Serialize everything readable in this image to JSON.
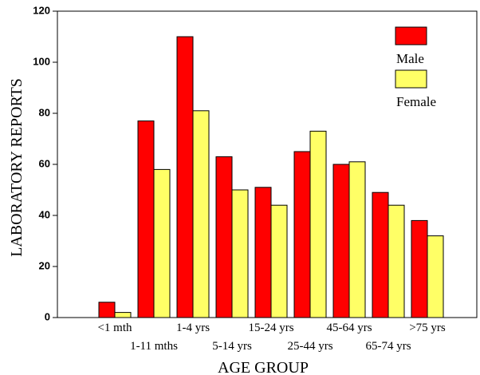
{
  "chart_data": {
    "type": "bar",
    "xlabel": "AGE GROUP",
    "ylabel": "LABORATORY REPORTS",
    "categories": [
      "<1 mth",
      "1-11 mths",
      "1-4 yrs",
      "5-14 yrs",
      "15-24 yrs",
      "25-44 yrs",
      "45-64 yrs",
      "65-74 yrs",
      ">75 yrs"
    ],
    "series": [
      {
        "name": "Male",
        "color": "#ff0000",
        "values": [
          6,
          77,
          110,
          63,
          51,
          65,
          60,
          49,
          38
        ]
      },
      {
        "name": "Female",
        "color": "#ffff66",
        "values": [
          2,
          58,
          81,
          50,
          44,
          73,
          61,
          44,
          32
        ]
      }
    ],
    "ylim": [
      0,
      120
    ],
    "yticks": [
      0,
      20,
      40,
      60,
      80,
      100,
      120
    ],
    "grid": false,
    "legend": "top-right"
  }
}
